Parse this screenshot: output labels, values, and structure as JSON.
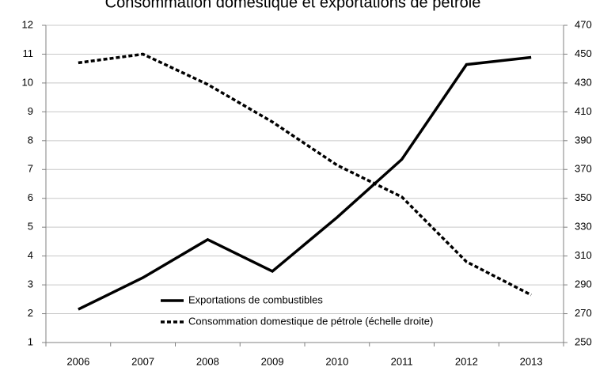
{
  "chart_data": {
    "type": "line",
    "title": "Consommation domestique et exportations de pétrole",
    "categories": [
      "2006",
      "2007",
      "2008",
      "2009",
      "2010",
      "2011",
      "2012",
      "2013"
    ],
    "series": [
      {
        "name": "Exportations de combustibles",
        "color": "#000000",
        "dash": "solid",
        "values": [
          2.15,
          3.25,
          4.57,
          3.47,
          5.34,
          7.35,
          10.64,
          10.89
        ]
      },
      {
        "name": "Consommation domestique de pétrole (échelle droite)",
        "color": "#000000",
        "dash": "dotted",
        "axis": "y2",
        "values": [
          444,
          450,
          429,
          403,
          373,
          351,
          306,
          283
        ]
      }
    ],
    "ylim": [
      1,
      12
    ],
    "yticks": [
      1,
      2,
      3,
      4,
      5,
      6,
      7,
      8,
      9,
      10,
      11,
      12
    ],
    "y2lim": [
      250,
      470
    ],
    "y2ticks": [
      250,
      270,
      290,
      310,
      330,
      350,
      370,
      390,
      410,
      430,
      450,
      470
    ],
    "grid": true
  }
}
